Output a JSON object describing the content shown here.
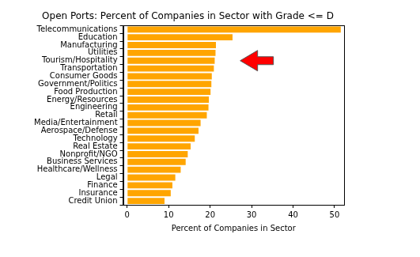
{
  "chart_data": {
    "type": "bar",
    "orientation": "horizontal",
    "title": "Open Ports: Percent of Companies in Sector with Grade <= D",
    "x_label": "Percent of Companies in Sector",
    "categories": [
      "Telecommunications",
      "Education",
      "Manufacturing",
      "Utilities",
      "Tourism/Hospitality",
      "Transportation",
      "Consumer Goods",
      "Government/Politics",
      "Food Production",
      "Energy/Resources",
      "Engineering",
      "Retail",
      "Media/Entertainment",
      "Aerospace/Defense",
      "Technology",
      "Real Estate",
      "Nonprofit/NGO",
      "Business Services",
      "Healthcare/Wellness",
      "Legal",
      "Finance",
      "Insurance",
      "Credit Union"
    ],
    "values": [
      51.5,
      25.4,
      21.4,
      21.3,
      21.1,
      20.9,
      20.4,
      20.3,
      20.1,
      19.7,
      19.6,
      19.2,
      17.7,
      17.2,
      16.3,
      15.3,
      14.6,
      14.1,
      12.9,
      11.6,
      10.9,
      10.5,
      9.0
    ],
    "color": "#ffa500",
    "xlim": [
      -1.0,
      52.3
    ],
    "xticks": [
      0,
      10,
      20,
      30,
      40,
      50
    ],
    "grid": false
  }
}
